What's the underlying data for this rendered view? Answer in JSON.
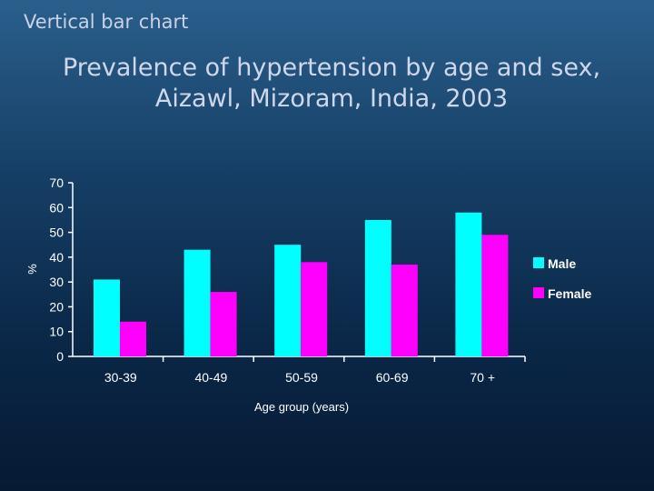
{
  "slide": {
    "heading": "Vertical bar chart"
  },
  "chart_data": {
    "type": "bar",
    "title": "Prevalence of hypertension by age and sex, Aizawl, Mizoram, India, 2003",
    "xlabel": "Age group (years)",
    "ylabel": "%",
    "ylim": [
      0,
      70
    ],
    "yticks": [
      "0",
      "10",
      "20",
      "30",
      "40",
      "50",
      "60",
      "70"
    ],
    "categories": [
      "30-39",
      "40-49",
      "50-59",
      "60-69",
      "70 +"
    ],
    "series": [
      {
        "name": "Male",
        "color": "#00ffff",
        "values": [
          31,
          43,
          45,
          55,
          58
        ]
      },
      {
        "name": "Female",
        "color": "#ff00ff",
        "values": [
          14,
          26,
          38,
          37,
          49
        ]
      }
    ],
    "legend": "right",
    "grid": false
  }
}
